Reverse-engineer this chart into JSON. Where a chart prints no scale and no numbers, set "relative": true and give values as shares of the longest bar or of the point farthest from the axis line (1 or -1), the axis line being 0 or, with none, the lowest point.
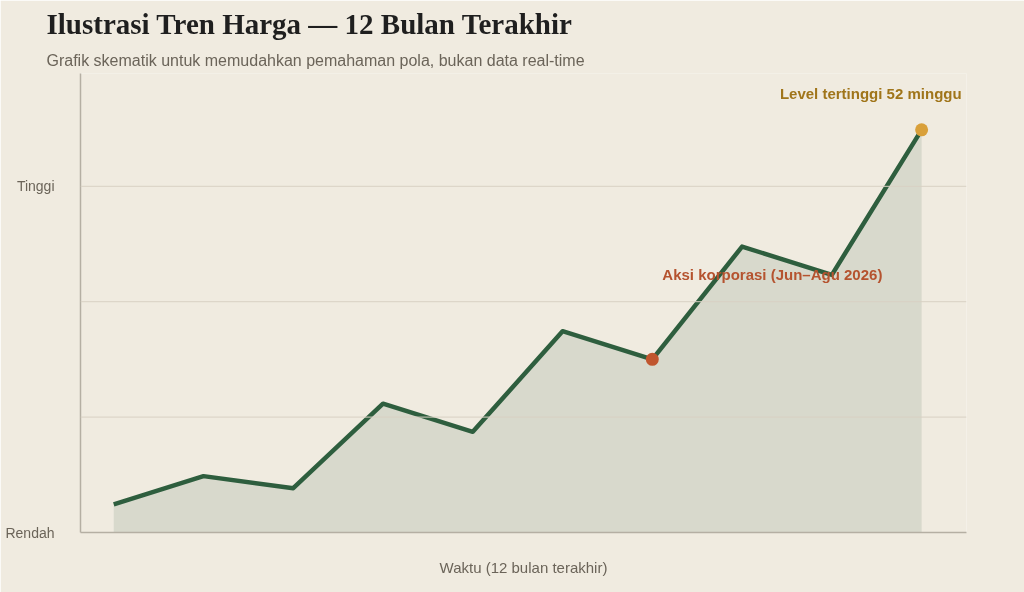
{
  "chart_data": {
    "type": "area",
    "title": "Ilustrasi Tren Harga — 12 Bulan Terakhir",
    "subtitle": "Grafik skematik untuk memudahkan pemahaman pola, bukan data real-time",
    "xlabel": "Waktu (12 bulan terakhir)",
    "relative": true,
    "grid": "y",
    "categories": [
      null,
      null,
      null,
      null,
      null,
      null,
      null,
      null,
      null,
      null
    ],
    "series": [
      {
        "color": "#2e5e3e",
        "values": [
          0.07,
          0.14,
          0.11,
          0.32,
          0.25,
          0.5,
          0.43,
          0.71,
          0.64,
          1.0
        ]
      }
    ],
    "annotations": [
      "Rendah",
      "Tinggi",
      "Aksi korporasi (Jun–Agu 2026)",
      "Level tertinggi 52 minggu"
    ]
  }
}
